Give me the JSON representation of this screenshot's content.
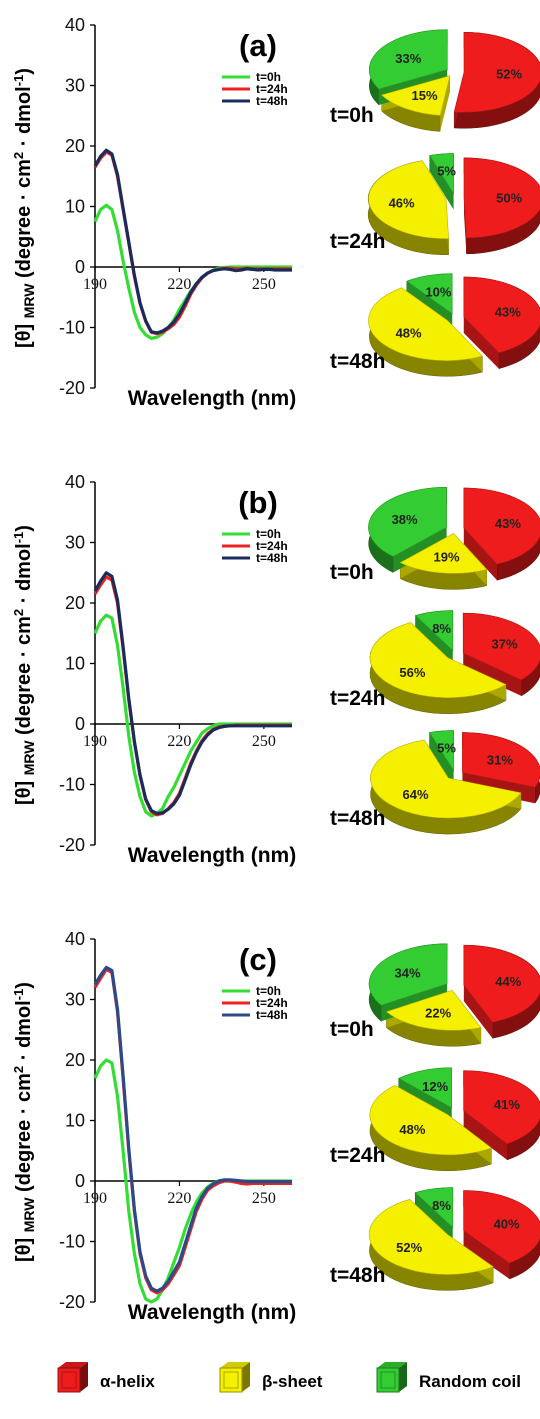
{
  "chart_data": [
    {
      "type": "line",
      "title": "(a)",
      "xlabel": "Wavelength (nm)",
      "ylabel_parts": [
        "[θ]",
        "MRW",
        "(degree · cm",
        "2",
        " · dmol",
        "-1",
        ")"
      ],
      "xlim": [
        190,
        260
      ],
      "ylim": [
        -20,
        40
      ],
      "x_ticks": [
        190,
        220,
        250
      ],
      "y_ticks": [
        -20,
        -10,
        0,
        10,
        20,
        30,
        40
      ],
      "series": [
        {
          "name": "t=0h",
          "color": "#33dd33",
          "x": [
            190,
            192,
            194,
            196,
            198,
            200,
            202,
            204,
            206,
            208,
            210,
            212,
            214,
            216,
            218,
            220,
            222,
            224,
            226,
            228,
            230,
            232,
            234,
            236,
            238,
            240,
            242,
            244,
            246,
            248,
            250,
            252,
            254,
            256,
            258,
            260
          ],
          "y": [
            7.5,
            9.5,
            10.2,
            9.5,
            6,
            1,
            -3.5,
            -7.5,
            -10,
            -11.2,
            -11.8,
            -11.6,
            -11,
            -10,
            -8.8,
            -7,
            -5.5,
            -4,
            -2.8,
            -1.8,
            -1,
            -0.5,
            -0.2,
            -0.1,
            0,
            0,
            0,
            0,
            0,
            0,
            0,
            0,
            0,
            0,
            0,
            0
          ]
        },
        {
          "name": "t=24h",
          "color": "#ee2222",
          "x": [
            190,
            192,
            194,
            196,
            198,
            200,
            202,
            204,
            206,
            208,
            210,
            212,
            214,
            216,
            218,
            220,
            222,
            224,
            226,
            228,
            230,
            232,
            234,
            236,
            238,
            240,
            242,
            244,
            246,
            248,
            250,
            252,
            254,
            256,
            258,
            260
          ],
          "y": [
            16.5,
            18,
            19,
            18.5,
            15,
            9.5,
            4,
            -1.5,
            -6,
            -9,
            -10.8,
            -11,
            -10.8,
            -10.2,
            -9.5,
            -8.3,
            -6.5,
            -4.5,
            -3,
            -1.8,
            -1,
            -0.6,
            -0.4,
            -0.2,
            -0.2,
            -0.3,
            -0.3,
            -0.2,
            -0.3,
            -0.3,
            -0.3,
            -0.3,
            -0.3,
            -0.3,
            -0.3,
            -0.3
          ]
        },
        {
          "name": "t=48h",
          "color": "#1a2b5c",
          "x": [
            190,
            192,
            194,
            196,
            198,
            200,
            202,
            204,
            206,
            208,
            210,
            212,
            214,
            216,
            218,
            220,
            222,
            224,
            226,
            228,
            230,
            232,
            234,
            236,
            238,
            240,
            242,
            244,
            246,
            248,
            250,
            252,
            254,
            256,
            258,
            260
          ],
          "y": [
            16.7,
            18.3,
            19.3,
            18.7,
            15.3,
            9.7,
            4.1,
            -1.4,
            -5.9,
            -8.9,
            -10.7,
            -10.9,
            -10.6,
            -10,
            -9.1,
            -7.8,
            -6,
            -4.2,
            -2.8,
            -1.7,
            -1,
            -0.6,
            -0.4,
            -0.3,
            -0.4,
            -0.6,
            -0.5,
            -0.3,
            -0.4,
            -0.5,
            -0.4,
            -0.4,
            -0.5,
            -0.5,
            -0.5,
            -0.5
          ]
        }
      ]
    },
    {
      "type": "pie",
      "title": "t=0h",
      "categories": [
        "α-helix",
        "β-sheet",
        "Random coil"
      ],
      "values": [
        52,
        15,
        33
      ],
      "labels": [
        "52%",
        "15%",
        "33%"
      ],
      "colors": [
        "#ee1c1c",
        "#f5f000",
        "#33cc33"
      ]
    },
    {
      "type": "pie",
      "title": "t=24h",
      "categories": [
        "α-helix",
        "β-sheet",
        "Random coil"
      ],
      "values": [
        50,
        46,
        5
      ],
      "labels": [
        "50%",
        "46%",
        "5%"
      ],
      "colors": [
        "#ee1c1c",
        "#f5f000",
        "#33cc33"
      ]
    },
    {
      "type": "pie",
      "title": "t=48h",
      "categories": [
        "α-helix",
        "β-sheet",
        "Random coil"
      ],
      "values": [
        43,
        48,
        10
      ],
      "labels": [
        "43%",
        "48%",
        "10%"
      ],
      "colors": [
        "#ee1c1c",
        "#f5f000",
        "#33cc33"
      ]
    },
    {
      "type": "line",
      "title": "(b)",
      "xlabel": "Wavelength (nm)",
      "ylabel_parts": [
        "[θ]",
        "MRW",
        "(degree · cm",
        "2",
        " · dmol",
        "-1",
        ")"
      ],
      "xlim": [
        190,
        260
      ],
      "ylim": [
        -20,
        40
      ],
      "x_ticks": [
        190,
        220,
        250
      ],
      "y_ticks": [
        -20,
        -10,
        0,
        10,
        20,
        30,
        40
      ],
      "series": [
        {
          "name": "t=0h",
          "color": "#33dd33",
          "x": [
            190,
            192,
            194,
            196,
            198,
            200,
            202,
            204,
            206,
            208,
            210,
            212,
            214,
            216,
            218,
            220,
            222,
            224,
            226,
            228,
            230,
            232,
            234,
            236,
            238,
            240,
            242,
            244,
            246,
            248,
            250,
            252,
            254,
            256,
            258,
            260
          ],
          "y": [
            15,
            17,
            18,
            17.5,
            13,
            6,
            -2,
            -8,
            -12,
            -14.5,
            -15.2,
            -14.8,
            -14,
            -12,
            -10.5,
            -8.5,
            -6.5,
            -4.5,
            -3,
            -1.5,
            -0.8,
            -0.3,
            0,
            0,
            0,
            0,
            0,
            0,
            0,
            0,
            0,
            0,
            0,
            0,
            0,
            0
          ]
        },
        {
          "name": "t=24h",
          "color": "#ee2222",
          "x": [
            190,
            192,
            194,
            196,
            198,
            200,
            202,
            204,
            206,
            208,
            210,
            212,
            214,
            216,
            218,
            220,
            222,
            224,
            226,
            228,
            230,
            232,
            234,
            236,
            238,
            240,
            242,
            244,
            246,
            248,
            250,
            252,
            254,
            256,
            258,
            260
          ],
          "y": [
            21.5,
            23,
            24.3,
            23.8,
            20,
            12.5,
            4,
            -3,
            -8.5,
            -12.5,
            -14.5,
            -15,
            -14.8,
            -14,
            -13,
            -11.5,
            -9,
            -6.5,
            -4.5,
            -2.8,
            -1.6,
            -0.9,
            -0.5,
            -0.3,
            -0.3,
            -0.2,
            -0.2,
            -0.2,
            -0.2,
            -0.2,
            -0.2,
            -0.2,
            -0.2,
            -0.2,
            -0.2,
            -0.2
          ]
        },
        {
          "name": "t=48h",
          "color": "#1a2b5c",
          "x": [
            190,
            192,
            194,
            196,
            198,
            200,
            202,
            204,
            206,
            208,
            210,
            212,
            214,
            216,
            218,
            220,
            222,
            224,
            226,
            228,
            230,
            232,
            234,
            236,
            238,
            240,
            242,
            244,
            246,
            248,
            250,
            252,
            254,
            256,
            258,
            260
          ],
          "y": [
            22,
            23.6,
            25,
            24.4,
            20.5,
            12.8,
            4.2,
            -2.9,
            -8.4,
            -12.4,
            -14.3,
            -14.8,
            -14.7,
            -14.1,
            -13.2,
            -11.8,
            -9.3,
            -6.8,
            -4.7,
            -3,
            -1.8,
            -1,
            -0.6,
            -0.4,
            -0.3,
            -0.3,
            -0.3,
            -0.3,
            -0.3,
            -0.3,
            -0.3,
            -0.3,
            -0.3,
            -0.3,
            -0.3,
            -0.3
          ]
        }
      ]
    },
    {
      "type": "pie",
      "title": "t=0h",
      "categories": [
        "α-helix",
        "β-sheet",
        "Random coil"
      ],
      "values": [
        43,
        19,
        38
      ],
      "labels": [
        "43%",
        "19%",
        "38%"
      ],
      "colors": [
        "#ee1c1c",
        "#f5f000",
        "#33cc33"
      ]
    },
    {
      "type": "pie",
      "title": "t=24h",
      "categories": [
        "α-helix",
        "β-sheet",
        "Random coil"
      ],
      "values": [
        37,
        56,
        8
      ],
      "labels": [
        "37%",
        "56%",
        "8%"
      ],
      "colors": [
        "#ee1c1c",
        "#f5f000",
        "#33cc33"
      ]
    },
    {
      "type": "pie",
      "title": "t=48h",
      "categories": [
        "α-helix",
        "β-sheet",
        "Random coil"
      ],
      "values": [
        31,
        64,
        5
      ],
      "labels": [
        "31%",
        "64%",
        "5%"
      ],
      "colors": [
        "#ee1c1c",
        "#f5f000",
        "#33cc33"
      ]
    },
    {
      "type": "line",
      "title": "(c)",
      "xlabel": "Wavelength (nm)",
      "ylabel_parts": [
        "[θ]",
        "MRW",
        "(degree · cm",
        "2",
        " · dmol",
        "-1",
        ")"
      ],
      "xlim": [
        190,
        260
      ],
      "ylim": [
        -20,
        40
      ],
      "x_ticks": [
        190,
        220,
        250
      ],
      "y_ticks": [
        -20,
        -10,
        0,
        10,
        20,
        30,
        40
      ],
      "series": [
        {
          "name": "t=0h",
          "color": "#33dd33",
          "x": [
            190,
            192,
            194,
            196,
            198,
            200,
            202,
            204,
            206,
            208,
            210,
            212,
            214,
            216,
            218,
            220,
            222,
            224,
            226,
            228,
            230,
            232,
            234,
            236,
            238,
            240,
            242,
            244,
            246,
            248,
            250,
            252,
            254,
            256,
            258,
            260
          ],
          "y": [
            17,
            19,
            20,
            19.5,
            14,
            5,
            -5,
            -12,
            -17,
            -19.5,
            -20,
            -19.5,
            -18,
            -16,
            -13.5,
            -11,
            -8,
            -5.5,
            -3.5,
            -2,
            -1,
            -0.4,
            0,
            0,
            0,
            0,
            0,
            0,
            0,
            0,
            0,
            0,
            0,
            0,
            0,
            0
          ]
        },
        {
          "name": "t=24h",
          "color": "#ee2222",
          "x": [
            190,
            192,
            194,
            196,
            198,
            200,
            202,
            204,
            206,
            208,
            210,
            212,
            214,
            216,
            218,
            220,
            222,
            224,
            226,
            228,
            230,
            232,
            234,
            236,
            238,
            240,
            242,
            244,
            246,
            248,
            250,
            252,
            254,
            256,
            258,
            260
          ],
          "y": [
            32,
            33.5,
            35,
            34.5,
            28,
            17,
            5,
            -5,
            -12,
            -16,
            -18,
            -18.5,
            -18,
            -17,
            -15.5,
            -14,
            -11,
            -8,
            -5,
            -3,
            -1.5,
            -0.8,
            -0.3,
            0,
            0,
            -0.2,
            -0.4,
            -0.5,
            -0.4,
            -0.4,
            -0.4,
            -0.4,
            -0.4,
            -0.4,
            -0.4,
            -0.4
          ]
        },
        {
          "name": "t=48h",
          "color": "#2c4a8a",
          "x": [
            190,
            192,
            194,
            196,
            198,
            200,
            202,
            204,
            206,
            208,
            210,
            212,
            214,
            216,
            218,
            220,
            222,
            224,
            226,
            228,
            230,
            232,
            234,
            236,
            238,
            240,
            242,
            244,
            246,
            248,
            250,
            252,
            254,
            256,
            258,
            260
          ],
          "y": [
            32.5,
            34,
            35.3,
            34.8,
            28.4,
            17.4,
            5.3,
            -4.7,
            -11.7,
            -15.7,
            -17.7,
            -18.2,
            -17.7,
            -16.6,
            -15,
            -13.4,
            -10.4,
            -7.4,
            -4.5,
            -2.6,
            -1.2,
            -0.5,
            0,
            0.2,
            0.2,
            0.1,
            0,
            -0.1,
            -0.1,
            -0.1,
            -0.1,
            -0.1,
            -0.1,
            -0.1,
            -0.1,
            -0.1
          ]
        }
      ]
    },
    {
      "type": "pie",
      "title": "t=0h",
      "categories": [
        "α-helix",
        "β-sheet",
        "Random coil"
      ],
      "values": [
        44,
        22,
        34
      ],
      "labels": [
        "44%",
        "22%",
        "34%"
      ],
      "colors": [
        "#ee1c1c",
        "#f5f000",
        "#33cc33"
      ]
    },
    {
      "type": "pie",
      "title": "t=24h",
      "categories": [
        "α-helix",
        "β-sheet",
        "Random coil"
      ],
      "values": [
        41,
        48,
        12
      ],
      "labels": [
        "41%",
        "48%",
        "12%"
      ],
      "colors": [
        "#ee1c1c",
        "#f5f000",
        "#33cc33"
      ]
    },
    {
      "type": "pie",
      "title": "t=48h",
      "categories": [
        "α-helix",
        "β-sheet",
        "Random coil"
      ],
      "values": [
        40,
        52,
        8
      ],
      "labels": [
        "40%",
        "52%",
        "8%"
      ],
      "colors": [
        "#ee1c1c",
        "#f5f000",
        "#33cc33"
      ]
    }
  ],
  "legend": {
    "items": [
      {
        "label": "α-helix",
        "color": "#ee1c1c",
        "icon": "red-cube-icon"
      },
      {
        "label": "β-sheet",
        "color": "#f5f000",
        "icon": "yellow-cube-icon"
      },
      {
        "label": "Random coil",
        "color": "#33cc33",
        "icon": "green-cube-icon"
      }
    ]
  }
}
